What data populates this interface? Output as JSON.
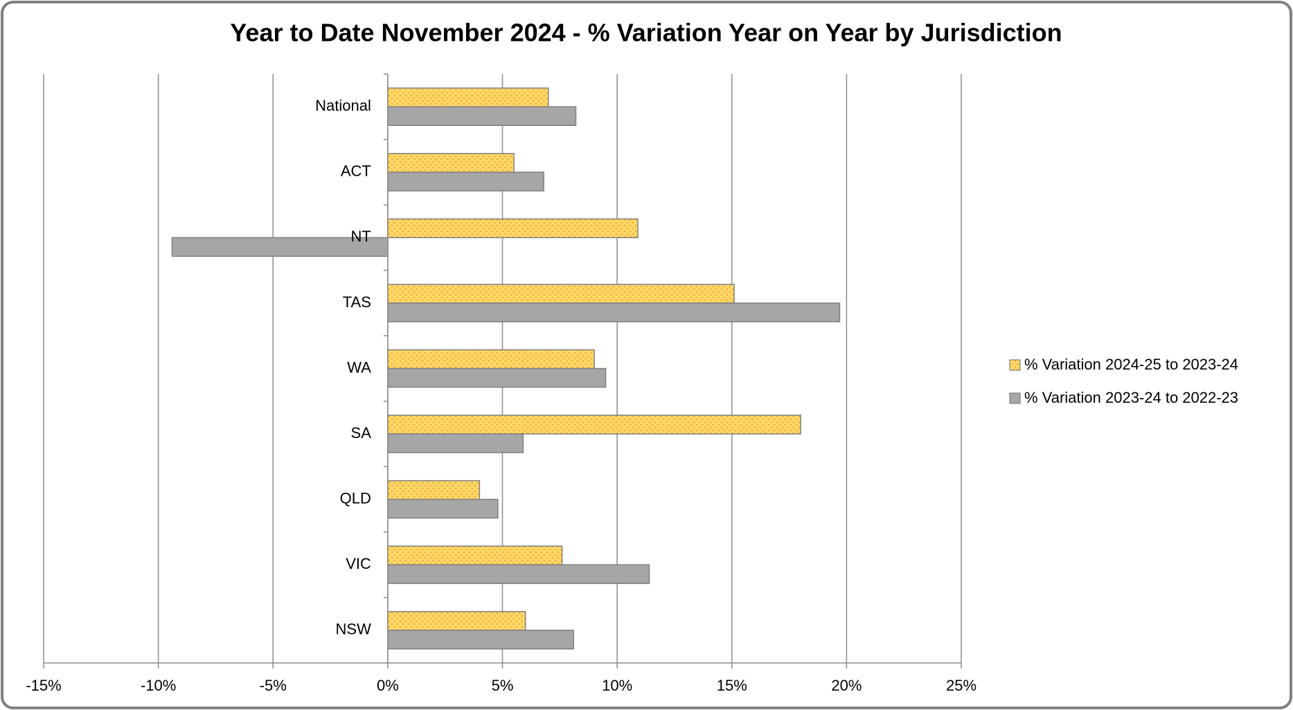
{
  "chart_data": {
    "type": "hbar",
    "title": "Year to Date November 2024 - % Variation Year on Year by Jurisdiction",
    "categories": [
      "National",
      "ACT",
      "NT",
      "TAS",
      "WA",
      "SA",
      "QLD",
      "VIC",
      "NSW"
    ],
    "series": [
      {
        "name": "% Variation 2024-25 to 2023-24",
        "color": "#ffd966",
        "values": [
          7.0,
          5.5,
          10.9,
          15.1,
          9.0,
          18.0,
          4.0,
          7.6,
          6.0
        ]
      },
      {
        "name": "% Variation 2023-24 to 2022-23",
        "color": "#a6a6a6",
        "values": [
          8.2,
          6.8,
          -9.4,
          19.7,
          9.5,
          5.9,
          4.8,
          11.4,
          8.1
        ]
      }
    ],
    "xlim": [
      -15,
      25
    ],
    "xticks": [
      {
        "value": -15,
        "label": "-15%"
      },
      {
        "value": -10,
        "label": "-10%"
      },
      {
        "value": -5,
        "label": "-5%"
      },
      {
        "value": 0,
        "label": "0%"
      },
      {
        "value": 5,
        "label": "5%"
      },
      {
        "value": 10,
        "label": "10%"
      },
      {
        "value": 15,
        "label": "15%"
      },
      {
        "value": 20,
        "label": "20%"
      },
      {
        "value": 25,
        "label": "25%"
      }
    ],
    "grid": true,
    "legend": "right"
  }
}
